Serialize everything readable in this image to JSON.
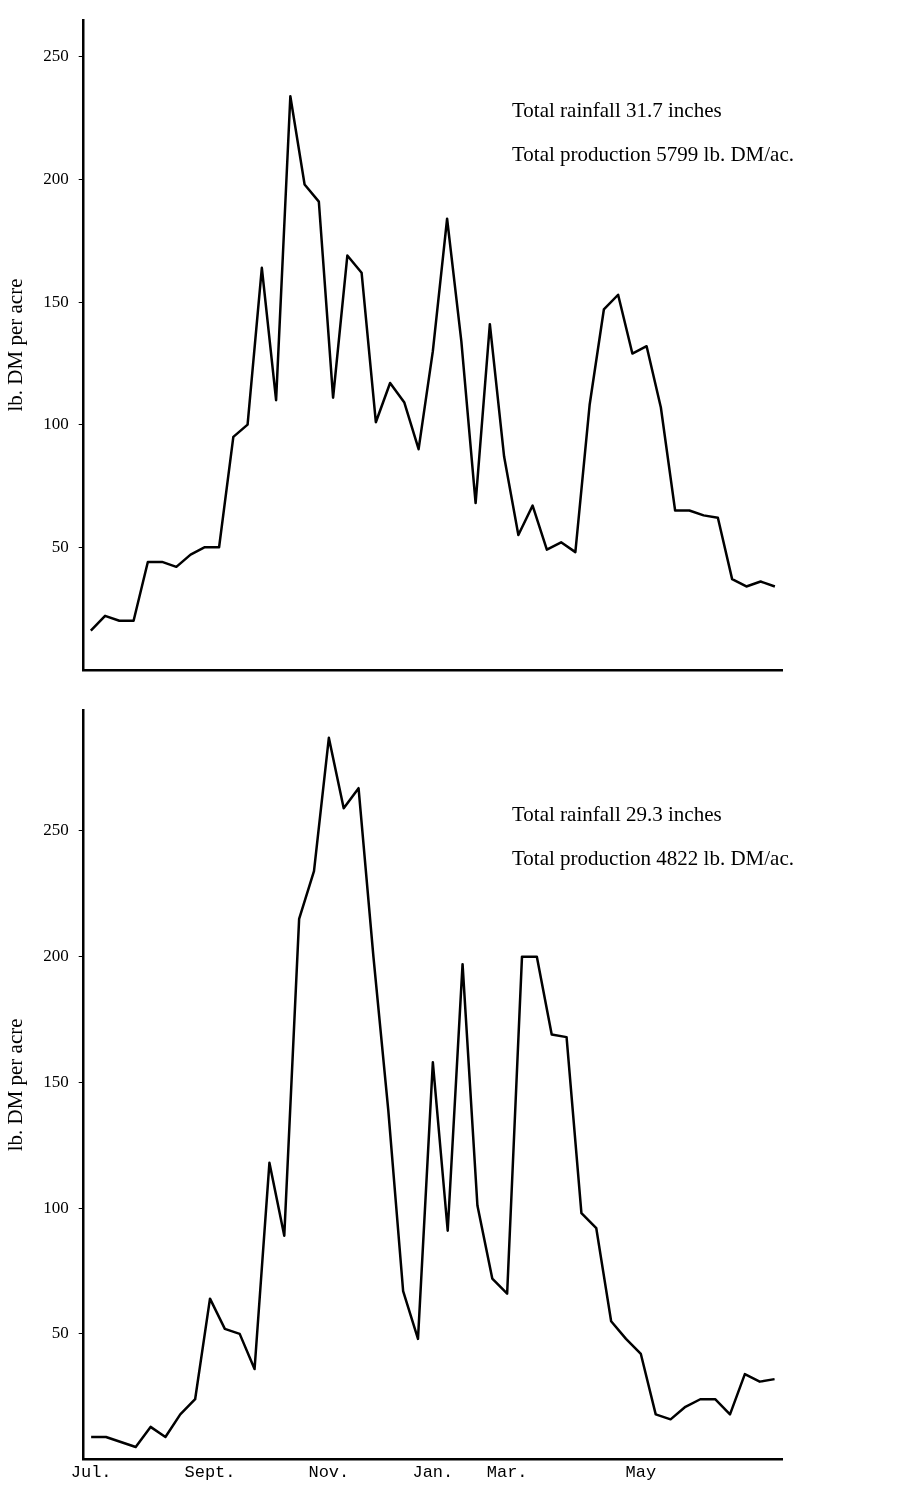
{
  "chart_data": [
    {
      "type": "line",
      "ylabel": "lb. DM per acre",
      "color": "#000000",
      "tick_labels": "y",
      "ylim": [
        0,
        265
      ],
      "yticks": [
        50,
        100,
        150,
        200,
        250
      ],
      "grid": false,
      "annotations": [
        "Total rainfall 31.7 inches",
        "Total production 5799 lb. DM/ac."
      ],
      "categories": [
        null,
        null,
        null,
        null,
        null,
        null,
        null,
        null,
        null,
        null,
        null,
        null,
        null,
        null,
        null,
        null,
        null,
        null,
        null,
        null,
        null,
        null,
        null,
        null,
        null,
        null,
        null,
        null,
        null,
        null,
        null,
        null,
        null,
        null,
        null,
        null,
        null,
        null,
        null,
        null,
        null,
        null,
        null,
        null,
        null,
        null,
        null,
        null,
        null
      ],
      "values": [
        16,
        22,
        20,
        20,
        44,
        44,
        42,
        47,
        50,
        50,
        95,
        100,
        164,
        110,
        234,
        198,
        191,
        111,
        169,
        162,
        101,
        117,
        109,
        90,
        130,
        184,
        134,
        68,
        141,
        87,
        55,
        67,
        49,
        52,
        48,
        108,
        147,
        153,
        129,
        132,
        107,
        65,
        65,
        63,
        62,
        37,
        34,
        36,
        34
      ]
    },
    {
      "type": "line",
      "ylabel": "lb. DM per acre",
      "color": "#000000",
      "ylim": [
        0,
        298
      ],
      "yticks": [
        50,
        100,
        150,
        200,
        250
      ],
      "grid": false,
      "annotations": [
        "Total rainfall 29.3 inches",
        "Total production 4822 lb. DM/ac."
      ],
      "categories": [
        "Jul.",
        null,
        null,
        null,
        null,
        null,
        null,
        null,
        "Sept.",
        null,
        null,
        null,
        null,
        null,
        null,
        null,
        "Nov.",
        null,
        null,
        null,
        null,
        null,
        null,
        "Jan.",
        null,
        null,
        null,
        null,
        "Mar.",
        null,
        null,
        null,
        null,
        null,
        null,
        null,
        null,
        "May",
        null,
        null,
        null,
        null,
        null,
        null,
        null,
        null,
        null
      ],
      "values": [
        9,
        9,
        7,
        5,
        13,
        9,
        18,
        24,
        64,
        52,
        50,
        36,
        118,
        89,
        215,
        234,
        287,
        259,
        267,
        200,
        139,
        67,
        48,
        158,
        91,
        197,
        101,
        72,
        66,
        200,
        200,
        169,
        168,
        98,
        92,
        55,
        48,
        42,
        18,
        16,
        21,
        24,
        24,
        18,
        34,
        31,
        32
      ]
    }
  ]
}
